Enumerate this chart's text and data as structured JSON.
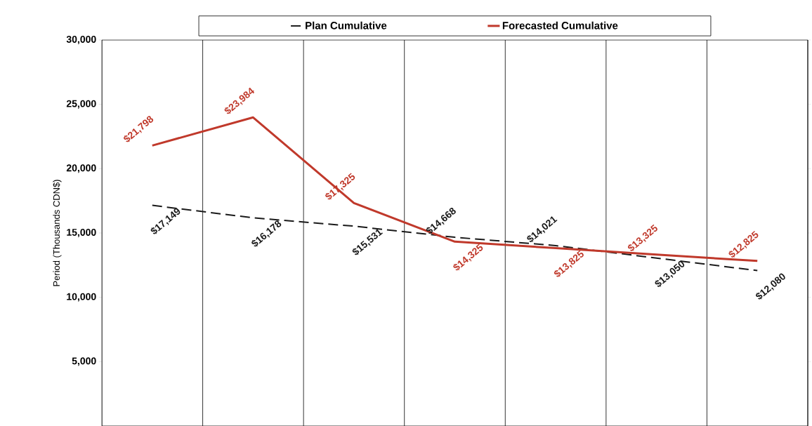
{
  "chart_data": {
    "type": "line",
    "ylabel": "Period (Thousands CDN$)",
    "categories": [
      null,
      null,
      null,
      null,
      null,
      null,
      null
    ],
    "series": [
      {
        "name": "Plan Cumulative",
        "color": "#1a1a1a",
        "line_style": "dashed",
        "values": [
          17149,
          16178,
          15531,
          14668,
          14021,
          13050,
          12080
        ],
        "value_labels": [
          "$17,149",
          "$16,178",
          "$15,531",
          "$14,668",
          "$14,021",
          "$13,050",
          "$12,080"
        ]
      },
      {
        "name": "Forecasted Cumulative",
        "color": "#c0392b",
        "line_style": "solid",
        "values": [
          21798,
          23984,
          17325,
          14325,
          13825,
          13325,
          12825
        ],
        "value_labels": [
          "$21,798",
          "$23,984",
          "$17,325",
          "$14,325",
          "$13,825",
          "$13,325",
          "$12,825"
        ]
      }
    ],
    "ylim": [
      0,
      30000
    ],
    "yticks": [
      {
        "value": 5000,
        "label": "5,000"
      },
      {
        "value": 10000,
        "label": "10,000"
      },
      {
        "value": 15000,
        "label": "15,000"
      },
      {
        "value": 20000,
        "label": "20,000"
      },
      {
        "value": 25000,
        "label": "25,000"
      },
      {
        "value": 30000,
        "label": "30,000"
      }
    ],
    "grid": "x",
    "legend": "top",
    "marker": "none"
  }
}
